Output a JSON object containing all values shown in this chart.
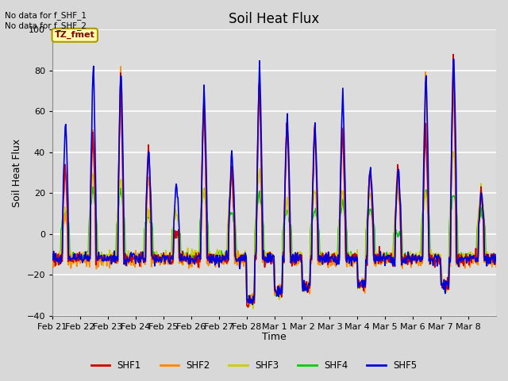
{
  "title": "Soil Heat Flux",
  "ylabel": "Soil Heat Flux",
  "xlabel": "Time",
  "ylim": [
    -40,
    100
  ],
  "annotation_text": "No data for f_SHF_1\nNo data for f_SHF_2",
  "legend_label": "TZ_fmet",
  "series_colors": {
    "SHF1": "#cc0000",
    "SHF2": "#ff8800",
    "SHF3": "#cccc00",
    "SHF4": "#00cc00",
    "SHF5": "#0000dd"
  },
  "background_color": "#d8d8d8",
  "plot_bg_color": "#dcdcdc",
  "grid_color": "#ffffff",
  "x_tick_labels": [
    "Feb 21",
    "Feb 22",
    "Feb 23",
    "Feb 24",
    "Feb 25",
    "Feb 26",
    "Feb 27",
    "Feb 28",
    "Mar 1",
    "Mar 2",
    "Mar 3",
    "Mar 4",
    "Mar 5",
    "Mar 6",
    "Mar 7",
    "Mar 8"
  ],
  "yticks": [
    -40,
    -20,
    0,
    20,
    40,
    60,
    80,
    100
  ],
  "n_days": 16,
  "day_peaks_shf5": [
    58,
    86,
    84,
    43,
    26,
    74,
    41,
    86,
    60,
    55,
    71,
    35,
    34,
    82,
    93,
    22
  ],
  "day_peaks_shf1": [
    33,
    52,
    78,
    43,
    0,
    68,
    33,
    80,
    59,
    57,
    55,
    34,
    34,
    55,
    90,
    22
  ],
  "day_peaks_shf2": [
    10,
    52,
    79,
    28,
    0,
    66,
    32,
    80,
    59,
    55,
    55,
    35,
    32,
    81,
    77,
    22
  ],
  "day_peaks_shf3": [
    11,
    30,
    28,
    11,
    10,
    22,
    34,
    34,
    16,
    22,
    22,
    23,
    22,
    22,
    44,
    22
  ],
  "day_peaks_shf4": [
    11,
    22,
    22,
    10,
    0,
    22,
    11,
    21,
    12,
    12,
    16,
    13,
    0,
    22,
    22,
    11
  ],
  "night_base": -12,
  "deep_dip_days": [
    7,
    8,
    9,
    11,
    14
  ],
  "deep_dips": [
    -32,
    -28,
    -26,
    -25,
    -25
  ]
}
